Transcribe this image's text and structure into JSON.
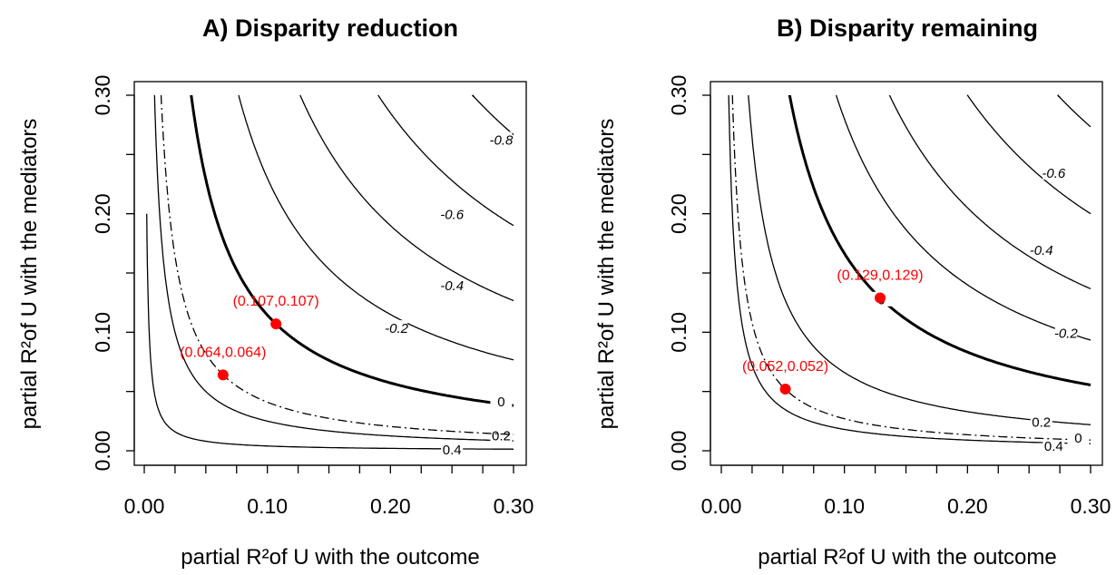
{
  "chart_data": [
    {
      "type": "contour",
      "title": "A) Disparity reduction",
      "xlabel": "partial R²of U with the outcome",
      "ylabel": "partial R²of U with the mediators",
      "xlim": [
        0,
        0.3
      ],
      "ylim": [
        0,
        0.3
      ],
      "x_ticks": [
        "0.00",
        "0.10",
        "0.20",
        "0.30"
      ],
      "y_ticks": [
        "0.00",
        "0.10",
        "0.20",
        "0.30"
      ],
      "grid": false,
      "contours": [
        {
          "label": "0.4",
          "style": "solid",
          "k": 0.0004,
          "label_at": [
            0.25,
            0.0016
          ]
        },
        {
          "label": "0.2",
          "style": "solid",
          "k": 0.0025,
          "label_at": [
            0.29,
            0.0135
          ]
        },
        {
          "label": "",
          "style": "dashdot",
          "k": 0.0041
        },
        {
          "label": "0",
          "style": "bold",
          "k": 0.01145,
          "label_at": [
            0.29,
            0.042
          ]
        },
        {
          "label": "-0.2",
          "style": "solid",
          "k": 0.023,
          "label_at": [
            0.205,
            0.104
          ]
        },
        {
          "label": "-0.4",
          "style": "solid",
          "k": 0.038,
          "label_at": [
            0.25,
            0.14
          ]
        },
        {
          "label": "-0.6",
          "style": "solid",
          "k": 0.057,
          "label_at": [
            0.25,
            0.2
          ]
        },
        {
          "label": "-0.8",
          "style": "solid",
          "k": 0.08,
          "label_at": [
            0.29,
            0.263
          ]
        }
      ],
      "points": [
        {
          "x": 0.064,
          "y": 0.064,
          "label": "(0.064,0.064)",
          "color": "#ff0000"
        },
        {
          "x": 0.107,
          "y": 0.107,
          "label": "(0.107,0.107)",
          "color": "#ff0000"
        }
      ]
    },
    {
      "type": "contour",
      "title": "B) Disparity remaining",
      "xlabel": "partial R²of U with the outcome",
      "ylabel": "partial R²of U with the mediators",
      "xlim": [
        0,
        0.3
      ],
      "ylim": [
        0,
        0.3
      ],
      "x_ticks": [
        "0.00",
        "0.10",
        "0.20",
        "0.30"
      ],
      "y_ticks": [
        "0.00",
        "0.10",
        "0.20",
        "0.30"
      ],
      "grid": false,
      "contours": [
        {
          "label": "0.4",
          "style": "solid",
          "k": 0.0018,
          "label_at": [
            0.27,
            0.0045
          ]
        },
        {
          "label": "0",
          "style": "dashdot",
          "k": 0.0027,
          "label_at": [
            0.29,
            0.0115
          ]
        },
        {
          "label": "0.2",
          "style": "solid",
          "k": 0.0066,
          "label_at": [
            0.26,
            0.025
          ]
        },
        {
          "label": "0",
          "style": "bold",
          "k": 0.01665,
          "label_at": [
            0.13,
            0.128
          ]
        },
        {
          "label": "-0.2",
          "style": "solid",
          "k": 0.028,
          "label_at": [
            0.28,
            0.1
          ]
        },
        {
          "label": "-0.4",
          "style": "solid",
          "k": 0.041,
          "label_at": [
            0.26,
            0.17
          ]
        },
        {
          "label": "-0.6",
          "style": "solid",
          "k": 0.06,
          "label_at": [
            0.27,
            0.235
          ]
        },
        {
          "label": "",
          "style": "solid",
          "k": 0.082
        }
      ],
      "points": [
        {
          "x": 0.052,
          "y": 0.052,
          "label": "(0.052,0.052)",
          "color": "#ff0000"
        },
        {
          "x": 0.129,
          "y": 0.129,
          "label": "(0.129,0.129)",
          "color": "#ff0000"
        }
      ]
    }
  ]
}
